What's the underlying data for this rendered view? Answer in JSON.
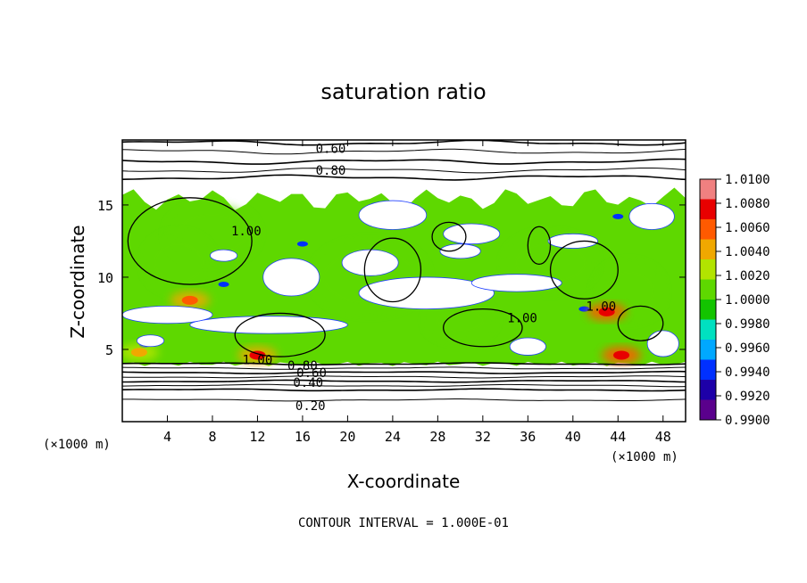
{
  "chart_data": {
    "type": "heatmap",
    "title": "saturation ratio",
    "xlabel": "X-coordinate",
    "ylabel": "Z-coordinate",
    "x_unit": "(×1000 m)",
    "y_unit": "(×1000 m)",
    "xlim": [
      0,
      50
    ],
    "ylim": [
      0,
      19.5
    ],
    "x_ticks": [
      4,
      8,
      12,
      16,
      20,
      24,
      28,
      32,
      36,
      40,
      44,
      48
    ],
    "y_ticks": [
      5,
      10,
      15
    ],
    "colorbar": {
      "ticks": [
        "1.0100",
        "1.0080",
        "1.0060",
        "1.0040",
        "1.0020",
        "1.0000",
        "0.9980",
        "0.9960",
        "0.9940",
        "0.9920",
        "0.9900"
      ],
      "range": [
        0.99,
        1.01
      ],
      "colors": [
        "#5a008c",
        "#1d00a8",
        "#0030ff",
        "#00a8ff",
        "#00e0c0",
        "#13c400",
        "#5ed800",
        "#b2e400",
        "#f0a800",
        "#ff5a00",
        "#e80000",
        "#f08080"
      ]
    },
    "contour_interval": "CONTOUR INTERVAL = 1.000E-01",
    "contour_labels": [
      {
        "text": "0.60",
        "x": 18.5,
        "z": 18.9
      },
      {
        "text": "0.80",
        "x": 18.5,
        "z": 17.4
      },
      {
        "text": "1.00",
        "x": 11.0,
        "z": 13.2
      },
      {
        "text": "1.00",
        "x": 12.0,
        "z": 4.3
      },
      {
        "text": "0.80",
        "x": 16.0,
        "z": 3.9
      },
      {
        "text": "0.60",
        "x": 16.8,
        "z": 3.4
      },
      {
        "text": "0.40",
        "x": 16.5,
        "z": 2.7
      },
      {
        "text": "0.20",
        "x": 16.7,
        "z": 1.1
      },
      {
        "text": "1.00",
        "x": 35.5,
        "z": 7.2
      },
      {
        "text": "1.00",
        "x": 42.5,
        "z": 8.0
      }
    ],
    "moist_region": {
      "z_bottom": 4.0,
      "z_top": 15.8
    },
    "hotspots": [
      {
        "x": 6.0,
        "z": 8.4,
        "value": 1.006
      },
      {
        "x": 12.0,
        "z": 4.6,
        "value": 1.007
      },
      {
        "x": 44.3,
        "z": 4.6,
        "value": 1.008
      },
      {
        "x": 43.0,
        "z": 7.6,
        "value": 1.008
      },
      {
        "x": 1.5,
        "z": 4.8,
        "value": 1.004
      }
    ],
    "dry_patches": [
      {
        "x": 24,
        "z": 14.3,
        "rx": 3.0,
        "ry": 1.0
      },
      {
        "x": 31,
        "z": 13.0,
        "rx": 2.5,
        "ry": 0.7
      },
      {
        "x": 27,
        "z": 8.9,
        "rx": 6.0,
        "ry": 1.1
      },
      {
        "x": 35,
        "z": 9.6,
        "rx": 4.0,
        "ry": 0.6
      },
      {
        "x": 13,
        "z": 6.7,
        "rx": 7.0,
        "ry": 0.6
      },
      {
        "x": 4,
        "z": 7.4,
        "rx": 4.0,
        "ry": 0.6
      },
      {
        "x": 15,
        "z": 10.0,
        "rx": 2.5,
        "ry": 1.3
      },
      {
        "x": 22,
        "z": 11.0,
        "rx": 2.5,
        "ry": 0.9
      },
      {
        "x": 30,
        "z": 11.8,
        "rx": 1.8,
        "ry": 0.5
      },
      {
        "x": 40,
        "z": 12.5,
        "rx": 2.2,
        "ry": 0.5
      },
      {
        "x": 47,
        "z": 14.2,
        "rx": 2.0,
        "ry": 0.9
      },
      {
        "x": 9,
        "z": 11.5,
        "rx": 1.2,
        "ry": 0.4
      },
      {
        "x": 36,
        "z": 5.2,
        "rx": 1.6,
        "ry": 0.6
      },
      {
        "x": 48,
        "z": 5.4,
        "rx": 1.4,
        "ry": 0.9
      },
      {
        "x": 2.5,
        "z": 5.6,
        "rx": 1.2,
        "ry": 0.4
      }
    ]
  }
}
